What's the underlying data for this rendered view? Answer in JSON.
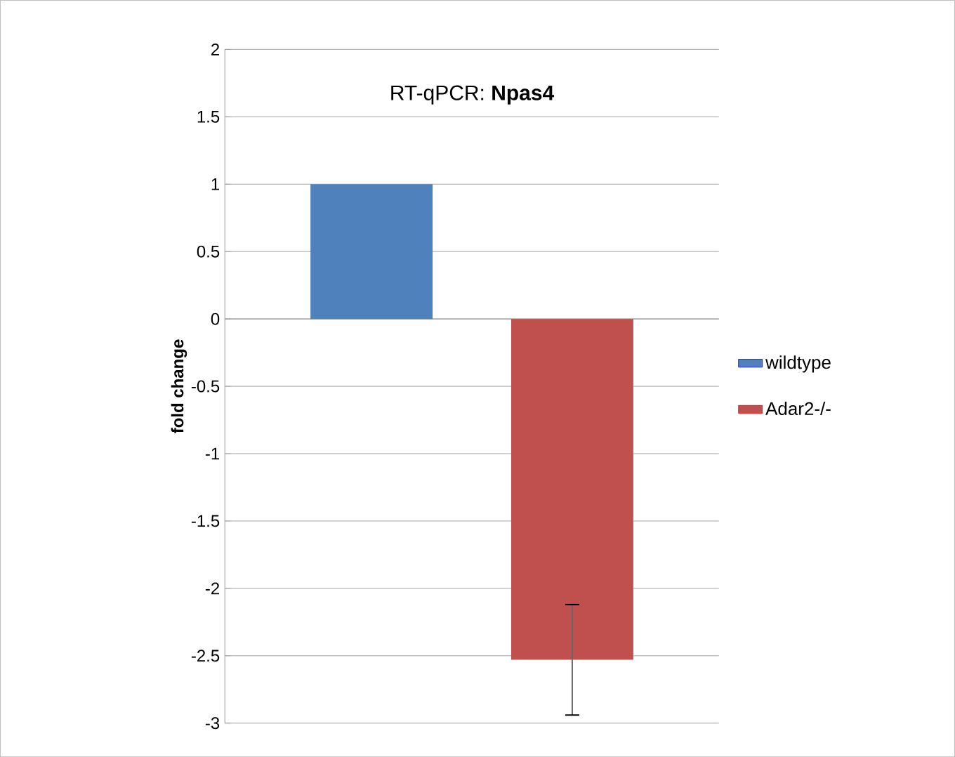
{
  "chart_data": {
    "type": "bar",
    "title": "RT-qPCR: **Npas4**",
    "ylabel": "fold change",
    "categories": [
      null
    ],
    "series": [
      {
        "name": "wildtype",
        "color": "#4f81bd",
        "values": [
          1
        ]
      },
      {
        "name": "Adar2-/-",
        "color": "#c0504d",
        "values": [
          -2.53
        ],
        "errors": [
          0.41
        ]
      }
    ],
    "ylim": [
      -3,
      2
    ],
    "yticks": [
      -3,
      -2.5,
      -2,
      -1.5,
      -1,
      -0.5,
      0,
      0.5,
      1,
      1.5,
      2
    ],
    "grid": "y",
    "legend": "right"
  }
}
